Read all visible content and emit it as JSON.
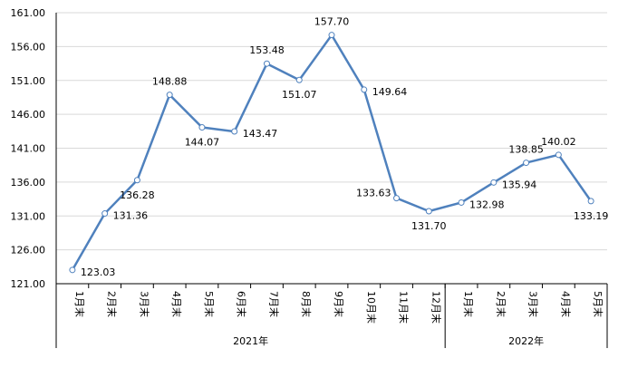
{
  "chart_data": {
    "type": "line",
    "title": "",
    "xlabel": "",
    "ylabel": "",
    "ylim": [
      121,
      161
    ],
    "yticks": [
      "121.00",
      "126.00",
      "131.00",
      "136.00",
      "141.00",
      "146.00",
      "151.00",
      "156.00",
      "161.00"
    ],
    "grid": true,
    "legend": "none",
    "series_color": "#4f81bd",
    "categories": [
      "1月末",
      "2月末",
      "3月末",
      "4月末",
      "5月末",
      "6月末",
      "7月末",
      "8月末",
      "9月末",
      "10月末",
      "11月末",
      "12月末",
      "1月末",
      "2月末",
      "3月末",
      "4月末",
      "5月末"
    ],
    "groups": [
      {
        "label": "2021年",
        "count": 12
      },
      {
        "label": "2022年",
        "count": 5
      }
    ],
    "series": [
      {
        "values": [
          123.03,
          131.36,
          136.28,
          148.88,
          144.07,
          143.47,
          153.48,
          151.07,
          157.7,
          149.64,
          133.63,
          131.7,
          132.98,
          135.94,
          138.85,
          140.02,
          133.19
        ]
      }
    ],
    "data_labels": [
      "123.03",
      "131.36",
      "136.28",
      "148.88",
      "144.07",
      "143.47",
      "153.48",
      "151.07",
      "157.70",
      "149.64",
      "133.63",
      "131.70",
      "132.98",
      "135.94",
      "138.85",
      "140.02",
      "133.19"
    ]
  }
}
